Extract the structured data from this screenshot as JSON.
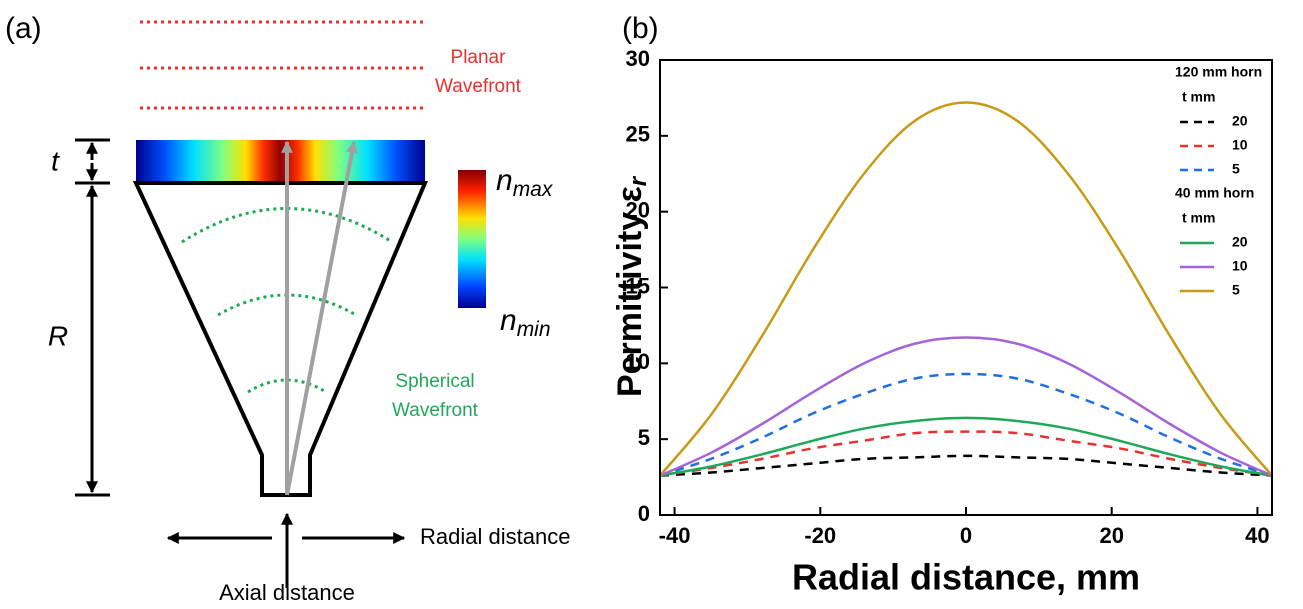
{
  "panel_a": {
    "label": "(a)",
    "planar": [
      "Planar",
      "Wavefront"
    ],
    "thickness": "t",
    "radius": "R",
    "n_max": {
      "symbol": "n",
      "sub": "max"
    },
    "n_min": {
      "symbol": "n",
      "sub": "min"
    },
    "spherical": [
      "Spherical",
      "Wavefront"
    ],
    "radial": "Radial distance",
    "axial": "Axial distance"
  },
  "chart_data": {
    "type": "line",
    "label": "(b)",
    "xlabel": "Radial distance, mm",
    "ylabel": "Permittivity ε",
    "ylabel_sub": "r",
    "xlim": [
      -42,
      42
    ],
    "ylim": [
      0,
      30
    ],
    "xticks": [
      -40,
      -20,
      0,
      20,
      40
    ],
    "yticks": [
      0,
      5,
      10,
      15,
      20,
      25,
      30
    ],
    "legend_titles": [
      "120 mm horn",
      "t mm",
      "40 mm horn",
      "t mm"
    ],
    "x": [
      -42,
      -35,
      -28,
      -21,
      -14,
      -7,
      0,
      7,
      14,
      21,
      28,
      35,
      42
    ],
    "series": [
      {
        "name": "20",
        "color": "#000000",
        "dash": true,
        "values": [
          2.6,
          2.8,
          3.1,
          3.4,
          3.7,
          3.8,
          3.9,
          3.8,
          3.7,
          3.4,
          3.1,
          2.8,
          2.6
        ]
      },
      {
        "name": "10",
        "color": "#e8312f",
        "dash": true,
        "values": [
          2.6,
          3.1,
          3.7,
          4.4,
          4.9,
          5.4,
          5.5,
          5.4,
          4.9,
          4.4,
          3.7,
          3.1,
          2.6
        ]
      },
      {
        "name": "5",
        "color": "#1e6fe0",
        "dash": true,
        "values": [
          2.6,
          3.7,
          5.1,
          6.7,
          8.0,
          9.0,
          9.3,
          9.0,
          8.0,
          6.7,
          5.1,
          3.7,
          2.6
        ]
      },
      {
        "name": "20",
        "color": "#1fa85a",
        "dash": false,
        "values": [
          2.6,
          3.2,
          4.0,
          4.9,
          5.7,
          6.2,
          6.4,
          6.2,
          5.7,
          4.9,
          4.0,
          3.2,
          2.6
        ]
      },
      {
        "name": "10",
        "color": "#a463d8",
        "dash": false,
        "values": [
          2.6,
          4.1,
          6.0,
          8.1,
          10.0,
          11.3,
          11.7,
          11.3,
          10.0,
          8.1,
          6.0,
          4.1,
          2.6
        ]
      },
      {
        "name": "5",
        "color": "#c89a16",
        "dash": false,
        "values": [
          2.6,
          6.6,
          11.8,
          17.5,
          22.5,
          26.0,
          27.2,
          26.0,
          22.5,
          17.5,
          11.8,
          6.6,
          2.6
        ]
      }
    ]
  }
}
